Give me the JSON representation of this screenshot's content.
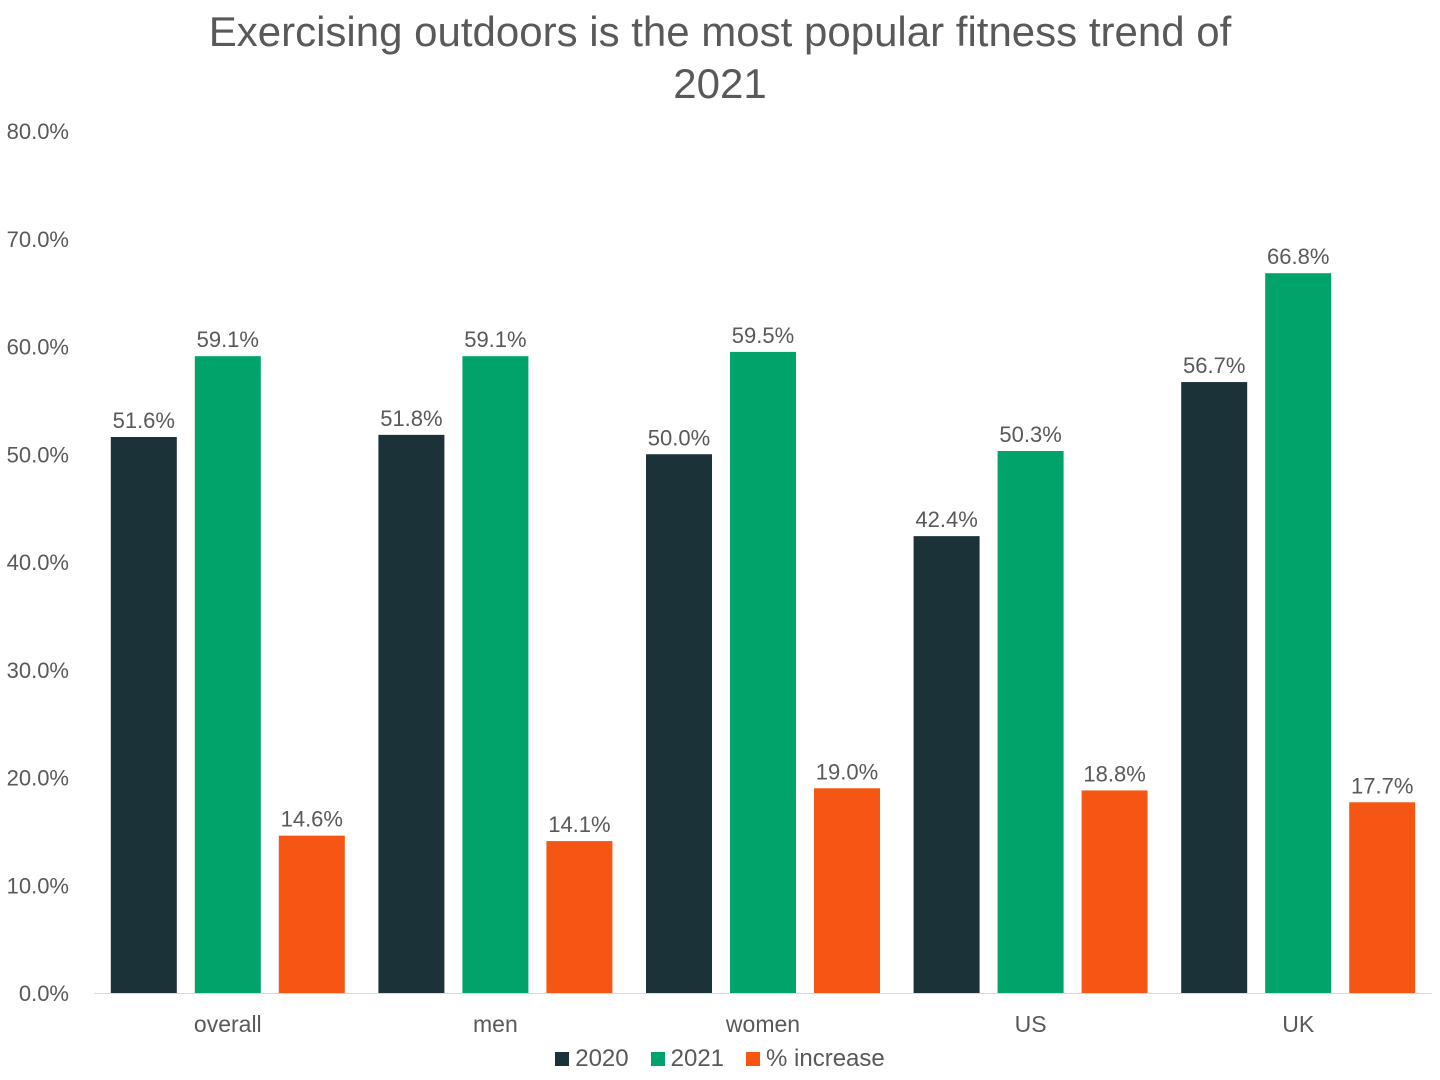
{
  "chart_data": {
    "type": "bar",
    "title": "Exercising outdoors is the most popular fitness trend of 2021",
    "title_lines": [
      "Exercising outdoors is the most popular fitness trend of",
      "2021"
    ],
    "categories": [
      "overall",
      "men",
      "women",
      "US",
      "UK"
    ],
    "series": [
      {
        "name": "2020",
        "color": "#1c3239",
        "values": [
          51.6,
          51.8,
          50.0,
          42.4,
          56.7
        ],
        "labels": [
          "51.6%",
          "51.8%",
          "50.0%",
          "42.4%",
          "56.7%"
        ]
      },
      {
        "name": "2021",
        "color": "#00a36a",
        "values": [
          59.1,
          59.1,
          59.5,
          50.3,
          66.8
        ],
        "labels": [
          "59.1%",
          "59.1%",
          "59.5%",
          "50.3%",
          "66.8%"
        ]
      },
      {
        "name": "% increase",
        "color": "#f55613",
        "values": [
          14.6,
          14.1,
          19.0,
          18.8,
          17.7
        ],
        "labels": [
          "14.6%",
          "14.1%",
          "19.0%",
          "18.8%",
          "17.7%"
        ]
      }
    ],
    "ylim": [
      0,
      80
    ],
    "yticks": [
      "0.0%",
      "10.0%",
      "20.0%",
      "30.0%",
      "40.0%",
      "50.0%",
      "60.0%",
      "70.0%",
      "80.0%"
    ],
    "grid": false,
    "legend": "bottom",
    "xlabel": "",
    "ylabel": ""
  }
}
